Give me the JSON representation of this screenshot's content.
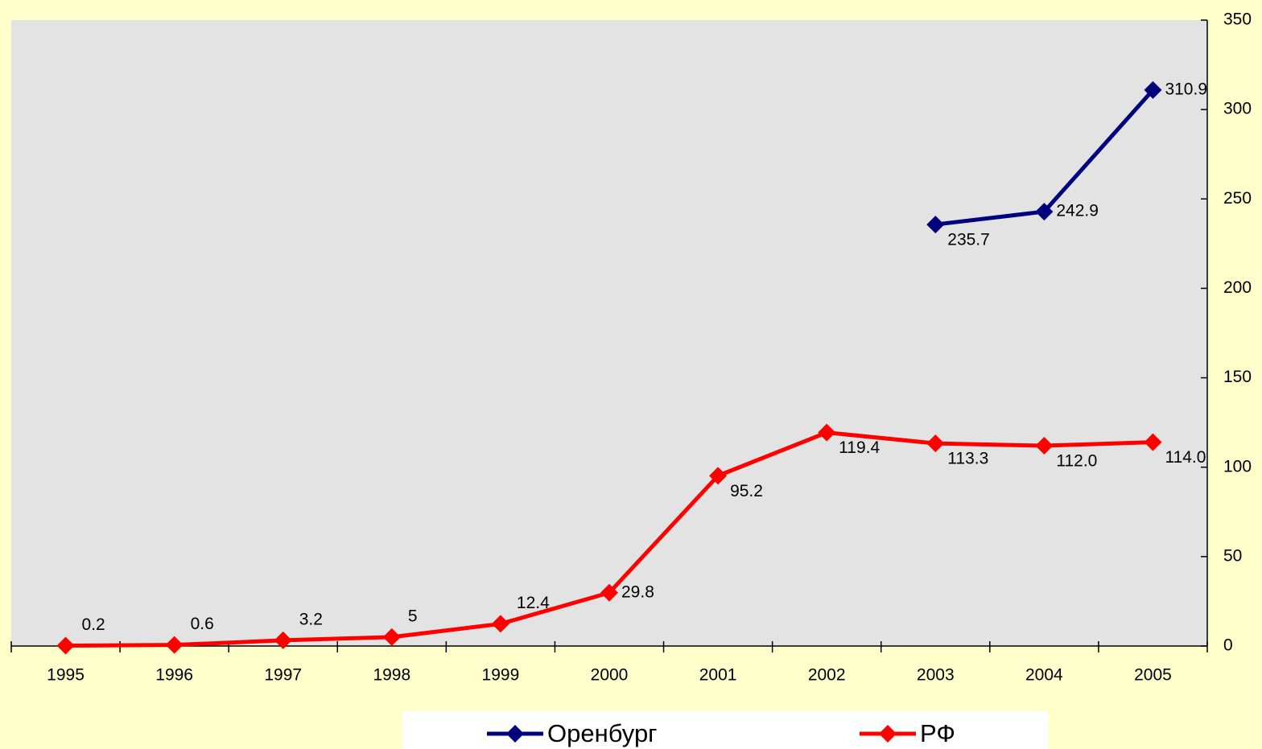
{
  "chart_data": {
    "type": "line",
    "categories": [
      "1995",
      "1996",
      "1997",
      "1998",
      "1999",
      "2000",
      "2001",
      "2002",
      "2003",
      "2004",
      "2005"
    ],
    "series": [
      {
        "name": "Оренбург",
        "color": "#00007f",
        "values": [
          null,
          null,
          null,
          null,
          null,
          null,
          null,
          null,
          235.7,
          242.9,
          310.9
        ]
      },
      {
        "name": "РФ",
        "color": "#ff0000",
        "values": [
          0.2,
          0.6,
          3.2,
          5,
          12.4,
          29.8,
          95.2,
          119.4,
          113.3,
          112.0,
          114.0
        ],
        "value_labels": [
          "0.2",
          "0.6",
          "3.2",
          "5",
          "12.4",
          "29.8",
          "95.2",
          "119.4",
          "113.3",
          "112.0",
          "114.0"
        ]
      }
    ],
    "ylim": [
      0,
      350
    ],
    "yticks": [
      0,
      50,
      100,
      150,
      200,
      250,
      300,
      350
    ],
    "y_axis_side": "right",
    "legend": "bottom"
  }
}
